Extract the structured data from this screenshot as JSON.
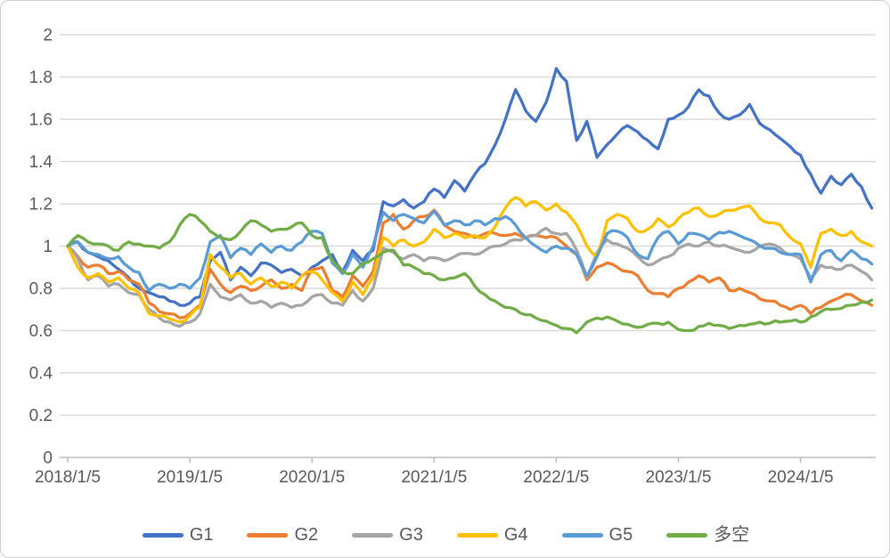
{
  "chart_data": {
    "type": "line",
    "title": "",
    "xlabel": "",
    "ylabel": "",
    "ylim": [
      0,
      2
    ],
    "grid": "horizontal",
    "legend_position": "bottom",
    "x_tick_labels": [
      "2018/1/5",
      "2019/1/5",
      "2020/1/5",
      "2021/1/5",
      "2022/1/5",
      "2023/1/5",
      "2024/1/5"
    ],
    "y_tick_labels": [
      "0",
      "0.2",
      "0.4",
      "0.6",
      "0.8",
      "1",
      "1.2",
      "1.4",
      "1.6",
      "1.8",
      "2"
    ],
    "y_tick_values": [
      0,
      0.2,
      0.4,
      0.6,
      0.8,
      1,
      1.2,
      1.4,
      1.6,
      1.8,
      2
    ],
    "x_sampling": "monthly points, index 0 = 2018/1, index 79 = 2024/8",
    "series": [
      {
        "name": "G1",
        "color": "#4472C4",
        "values": [
          1.0,
          1.02,
          0.97,
          0.95,
          0.93,
          0.89,
          0.85,
          0.8,
          0.78,
          0.76,
          0.74,
          0.72,
          0.73,
          0.76,
          0.93,
          0.97,
          0.84,
          0.9,
          0.86,
          0.92,
          0.91,
          0.875,
          0.89,
          0.86,
          0.9,
          0.93,
          0.96,
          0.88,
          0.98,
          0.93,
          0.98,
          1.21,
          1.19,
          1.22,
          1.18,
          1.21,
          1.27,
          1.23,
          1.31,
          1.26,
          1.34,
          1.39,
          1.48,
          1.6,
          1.74,
          1.64,
          1.59,
          1.68,
          1.84,
          1.78,
          1.5,
          1.59,
          1.42,
          1.48,
          1.53,
          1.57,
          1.54,
          1.5,
          1.46,
          1.6,
          1.62,
          1.66,
          1.74,
          1.71,
          1.63,
          1.6,
          1.62,
          1.67,
          1.58,
          1.55,
          1.51,
          1.47,
          1.43,
          1.34,
          1.25,
          1.33,
          1.29,
          1.34,
          1.28,
          1.18
        ]
      },
      {
        "name": "G2",
        "color": "#ED7D31",
        "values": [
          1.0,
          0.95,
          0.9,
          0.91,
          0.87,
          0.88,
          0.84,
          0.82,
          0.73,
          0.69,
          0.68,
          0.66,
          0.68,
          0.72,
          0.89,
          0.82,
          0.78,
          0.81,
          0.79,
          0.81,
          0.84,
          0.8,
          0.82,
          0.79,
          0.89,
          0.9,
          0.79,
          0.76,
          0.86,
          0.81,
          0.88,
          1.11,
          1.15,
          1.08,
          1.12,
          1.14,
          1.17,
          1.1,
          1.07,
          1.06,
          1.04,
          1.06,
          1.06,
          1.05,
          1.06,
          1.04,
          1.05,
          1.04,
          1.04,
          1.0,
          0.96,
          0.84,
          0.9,
          0.92,
          0.9,
          0.88,
          0.86,
          0.79,
          0.775,
          0.76,
          0.8,
          0.83,
          0.86,
          0.83,
          0.85,
          0.79,
          0.8,
          0.78,
          0.75,
          0.74,
          0.72,
          0.7,
          0.72,
          0.68,
          0.71,
          0.74,
          0.76,
          0.77,
          0.74,
          0.72
        ]
      },
      {
        "name": "G3",
        "color": "#A5A5A5",
        "values": [
          1.0,
          0.94,
          0.84,
          0.86,
          0.81,
          0.82,
          0.78,
          0.77,
          0.7,
          0.66,
          0.64,
          0.62,
          0.64,
          0.68,
          0.82,
          0.76,
          0.745,
          0.77,
          0.73,
          0.74,
          0.71,
          0.73,
          0.71,
          0.72,
          0.76,
          0.77,
          0.73,
          0.72,
          0.79,
          0.74,
          0.8,
          0.99,
          0.97,
          0.94,
          0.96,
          0.93,
          0.945,
          0.93,
          0.95,
          0.965,
          0.96,
          0.98,
          1.0,
          1.01,
          1.03,
          1.04,
          1.05,
          1.085,
          1.06,
          1.06,
          0.98,
          0.85,
          0.97,
          1.03,
          1.01,
          0.99,
          0.95,
          0.91,
          0.93,
          0.95,
          0.99,
          1.01,
          1.0,
          1.02,
          1.0,
          0.995,
          0.98,
          0.97,
          1.0,
          1.01,
          0.99,
          0.96,
          0.94,
          0.85,
          0.91,
          0.9,
          0.89,
          0.91,
          0.88,
          0.84
        ]
      },
      {
        "name": "G4",
        "color": "#FFC000",
        "values": [
          1.0,
          0.9,
          0.85,
          0.87,
          0.83,
          0.85,
          0.8,
          0.78,
          0.68,
          0.67,
          0.655,
          0.64,
          0.67,
          0.71,
          0.96,
          0.9,
          0.85,
          0.87,
          0.82,
          0.85,
          0.81,
          0.83,
          0.8,
          0.86,
          0.88,
          0.84,
          0.78,
          0.74,
          0.83,
          0.77,
          0.85,
          1.04,
          1.0,
          1.03,
          1.0,
          1.02,
          1.08,
          1.04,
          1.06,
          1.04,
          1.05,
          1.04,
          1.09,
          1.18,
          1.23,
          1.19,
          1.21,
          1.17,
          1.2,
          1.16,
          1.1,
          1.0,
          0.95,
          1.12,
          1.15,
          1.13,
          1.07,
          1.08,
          1.13,
          1.09,
          1.13,
          1.16,
          1.18,
          1.14,
          1.15,
          1.17,
          1.18,
          1.19,
          1.13,
          1.11,
          1.1,
          1.04,
          1.01,
          0.9,
          1.06,
          1.08,
          1.05,
          1.07,
          1.02,
          1.0
        ]
      },
      {
        "name": "G5",
        "color": "#5B9BD5",
        "values": [
          1.0,
          1.02,
          0.97,
          0.96,
          0.94,
          0.95,
          0.9,
          0.875,
          0.79,
          0.82,
          0.8,
          0.82,
          0.8,
          0.85,
          1.02,
          1.05,
          0.945,
          0.99,
          0.96,
          1.01,
          0.97,
          1.0,
          0.98,
          1.02,
          1.07,
          1.06,
          0.92,
          0.87,
          0.96,
          0.9,
          1.0,
          1.16,
          1.12,
          1.15,
          1.13,
          1.11,
          1.165,
          1.1,
          1.12,
          1.1,
          1.12,
          1.1,
          1.13,
          1.14,
          1.1,
          1.04,
          1.0,
          0.97,
          1.0,
          0.99,
          0.96,
          0.86,
          0.95,
          1.06,
          1.07,
          1.04,
          0.96,
          0.94,
          1.04,
          1.07,
          1.01,
          1.06,
          1.055,
          1.03,
          1.065,
          1.07,
          1.05,
          1.03,
          1.0,
          0.99,
          0.97,
          0.96,
          0.96,
          0.83,
          0.96,
          0.98,
          0.93,
          0.98,
          0.94,
          0.915
        ]
      },
      {
        "name": "多空",
        "color": "#70AD47",
        "values": [
          1.0,
          1.05,
          1.02,
          1.01,
          1.0,
          0.98,
          1.02,
          1.01,
          1.0,
          0.99,
          1.02,
          1.1,
          1.15,
          1.12,
          1.07,
          1.04,
          1.03,
          1.07,
          1.12,
          1.1,
          1.07,
          1.08,
          1.09,
          1.11,
          1.05,
          1.04,
          0.93,
          0.88,
          0.87,
          0.92,
          0.94,
          0.97,
          0.98,
          0.91,
          0.9,
          0.87,
          0.86,
          0.84,
          0.85,
          0.87,
          0.81,
          0.77,
          0.74,
          0.71,
          0.7,
          0.675,
          0.66,
          0.645,
          0.625,
          0.61,
          0.59,
          0.64,
          0.66,
          0.665,
          0.645,
          0.63,
          0.615,
          0.63,
          0.635,
          0.64,
          0.605,
          0.6,
          0.62,
          0.635,
          0.625,
          0.61,
          0.625,
          0.63,
          0.64,
          0.635,
          0.64,
          0.645,
          0.64,
          0.665,
          0.69,
          0.7,
          0.705,
          0.72,
          0.735,
          0.745
        ]
      }
    ]
  },
  "colors": {
    "background": "#FFFFFF",
    "border": "#CFCFCF",
    "axis_text": "#595959",
    "gridline": "#D9D9D9",
    "axis_line": "#BFBFBF"
  }
}
